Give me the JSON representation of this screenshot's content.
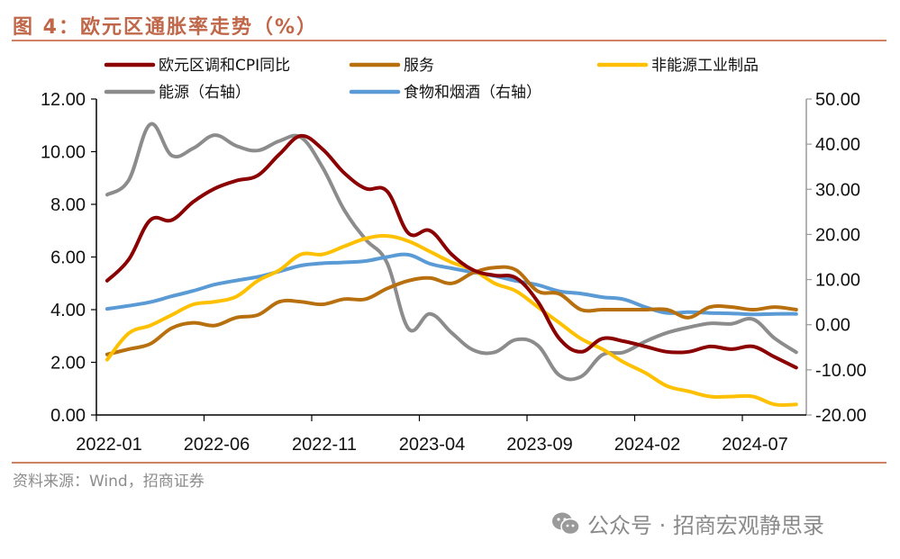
{
  "header": {
    "title": "图 4：欧元区通胀率走势（%）"
  },
  "footer": {
    "source": "资料来源：Wind，招商证券",
    "watermark_icon": "wechat-icon",
    "watermark": "公众号 · 招商宏观静思录"
  },
  "chart_data": {
    "type": "line",
    "title": "欧元区通胀率走势（%）",
    "xlabel": "",
    "ylabel": "",
    "grid": false,
    "legend_position": "top",
    "x": [
      "2022-01",
      "2022-02",
      "2022-03",
      "2022-04",
      "2022-05",
      "2022-06",
      "2022-07",
      "2022-08",
      "2022-09",
      "2022-10",
      "2022-11",
      "2022-12",
      "2023-01",
      "2023-02",
      "2023-03",
      "2023-04",
      "2023-05",
      "2023-06",
      "2023-07",
      "2023-08",
      "2023-09",
      "2023-10",
      "2023-11",
      "2023-12",
      "2024-01",
      "2024-02",
      "2024-03",
      "2024-04",
      "2024-05",
      "2024-06",
      "2024-07",
      "2024-08",
      "2024-09"
    ],
    "x_tick_labels": [
      "2022-01",
      "2022-06",
      "2022-11",
      "2023-04",
      "2023-09",
      "2024-02",
      "2024-07"
    ],
    "y_left": {
      "ylim": [
        0,
        12
      ],
      "tick_labels": [
        "0.00",
        "2.00",
        "4.00",
        "6.00",
        "8.00",
        "10.00",
        "12.00"
      ],
      "ticks": [
        0,
        2,
        4,
        6,
        8,
        10,
        12
      ]
    },
    "y_right": {
      "ylim": [
        -20,
        50
      ],
      "tick_labels": [
        "-20.00",
        "-10.00",
        "0.00",
        "10.00",
        "20.00",
        "30.00",
        "40.00",
        "50.00"
      ],
      "ticks": [
        -20,
        -10,
        0,
        10,
        20,
        30,
        40,
        50
      ]
    },
    "series": [
      {
        "name": "欧元区调和CPI同比",
        "axis": "left",
        "color": "#8b0000",
        "values": [
          5.1,
          5.9,
          7.4,
          7.4,
          8.1,
          8.6,
          8.9,
          9.1,
          9.9,
          10.6,
          10.1,
          9.2,
          8.6,
          8.5,
          6.9,
          7.0,
          6.1,
          5.5,
          5.3,
          5.2,
          4.3,
          2.9,
          2.4,
          2.9,
          2.8,
          2.6,
          2.4,
          2.4,
          2.6,
          2.5,
          2.6,
          2.2,
          1.8
        ]
      },
      {
        "name": "服务",
        "axis": "left",
        "color": "#b8700e",
        "values": [
          2.3,
          2.5,
          2.7,
          3.3,
          3.5,
          3.4,
          3.7,
          3.8,
          4.3,
          4.3,
          4.2,
          4.4,
          4.4,
          4.8,
          5.1,
          5.2,
          5.0,
          5.4,
          5.6,
          5.5,
          4.7,
          4.6,
          4.0,
          4.0,
          4.0,
          4.0,
          4.0,
          3.7,
          4.1,
          4.1,
          4.0,
          4.1,
          4.0
        ]
      },
      {
        "name": "非能源工业制品",
        "axis": "left",
        "color": "#ffc000",
        "values": [
          2.1,
          3.1,
          3.4,
          3.8,
          4.2,
          4.3,
          4.5,
          5.1,
          5.5,
          6.1,
          6.1,
          6.4,
          6.7,
          6.8,
          6.6,
          6.2,
          5.8,
          5.5,
          5.0,
          4.7,
          4.1,
          3.5,
          2.9,
          2.5,
          2.0,
          1.6,
          1.1,
          0.9,
          0.7,
          0.7,
          0.7,
          0.4,
          0.4
        ]
      },
      {
        "name": "能源（右轴）",
        "axis": "right",
        "color": "#8c8c8c",
        "values": [
          28.8,
          32.0,
          44.4,
          37.5,
          39.1,
          42.0,
          39.6,
          38.6,
          40.7,
          41.5,
          34.9,
          25.5,
          18.9,
          13.7,
          -0.9,
          2.4,
          -1.8,
          -5.6,
          -6.1,
          -3.3,
          -4.6,
          -11.2,
          -11.5,
          -6.7,
          -6.1,
          -3.7,
          -1.8,
          -0.6,
          0.3,
          0.2,
          1.2,
          -3.0,
          -6.1
        ]
      },
      {
        "name": "食物和烟酒（右轴）",
        "axis": "right",
        "color": "#5b9bd5",
        "values": [
          3.5,
          4.2,
          5.0,
          6.3,
          7.5,
          8.9,
          9.8,
          10.6,
          11.8,
          13.1,
          13.6,
          13.8,
          14.1,
          15.0,
          15.5,
          13.5,
          12.5,
          11.6,
          10.8,
          9.7,
          8.8,
          7.4,
          6.9,
          6.1,
          5.6,
          3.9,
          2.6,
          2.8,
          2.6,
          2.5,
          2.3,
          2.4,
          2.4
        ]
      }
    ]
  }
}
